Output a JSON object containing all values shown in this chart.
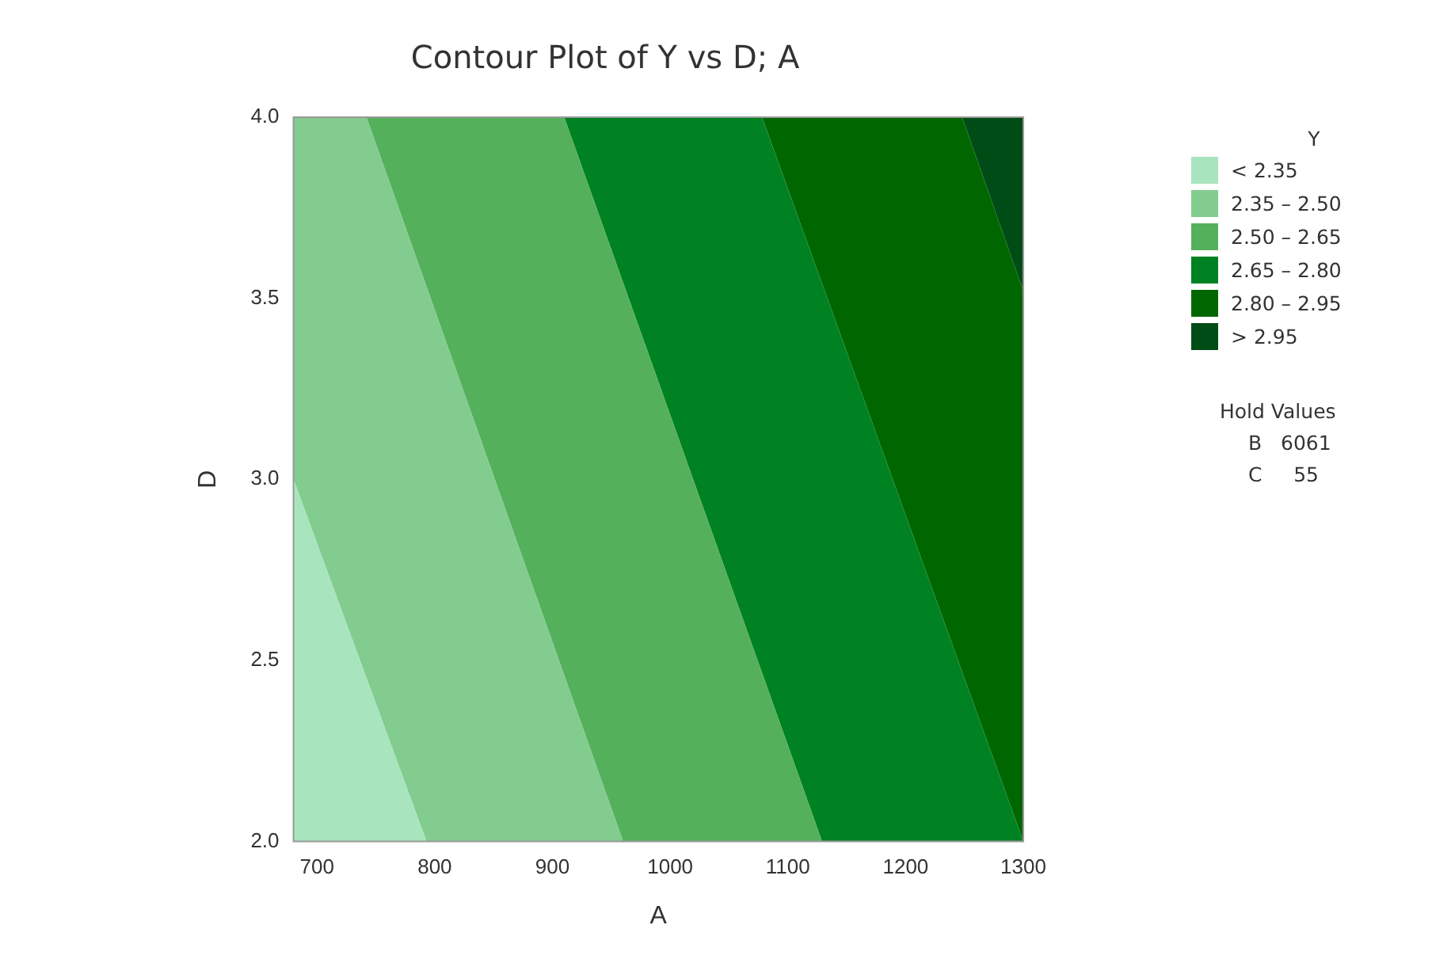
{
  "chart_data": {
    "type": "area",
    "title": "Contour Plot of Y vs D; A",
    "xlabel": "A",
    "ylabel": "D",
    "legend_title": "Y",
    "legend": "right",
    "xlim": [
      680,
      1300
    ],
    "xticks": [
      700,
      800,
      900,
      1000,
      1100,
      1200,
      1300
    ],
    "ylim": [
      2,
      4
    ],
    "yticks": [
      {
        "value": 2,
        "label": "2.0"
      },
      {
        "value": 2.5,
        "label": "2.5"
      },
      {
        "value": 3,
        "label": "3.0"
      },
      {
        "value": 3.5,
        "label": "3.5"
      },
      {
        "value": 4,
        "label": "4.0"
      }
    ],
    "grid": false,
    "series": [
      {
        "name": "< 2.35",
        "color": "#a8e4bd",
        "x": [
          680,
          793,
          680
        ],
        "values": [
          2,
          2,
          3.0
        ]
      },
      {
        "name": "2.35 – 2.50",
        "color": "#82cc90",
        "x": [
          793,
          960,
          742,
          680,
          680
        ],
        "values": [
          2,
          2,
          4,
          4,
          3.0
        ]
      },
      {
        "name": "2.50 – 2.65",
        "color": "#55b05c",
        "x": [
          960,
          1129,
          910,
          742
        ],
        "values": [
          2,
          2,
          4,
          4
        ]
      },
      {
        "name": "2.65 – 2.80",
        "color": "#008222",
        "x": [
          1129,
          1300,
          1078,
          910
        ],
        "values": [
          2,
          2,
          4,
          4
        ]
      },
      {
        "name": "2.80 – 2.95",
        "color": "#006700",
        "x": [
          1300,
          1300,
          1248,
          1078
        ],
        "values": [
          2,
          3.52,
          4,
          4
        ]
      },
      {
        "name": "> 2.95",
        "color": "#004c16",
        "x": [
          1300,
          1300,
          1248
        ],
        "values": [
          3.52,
          4,
          4
        ]
      }
    ],
    "annotations": [
      "Hold Values",
      "B   6061",
      "C     55"
    ]
  }
}
